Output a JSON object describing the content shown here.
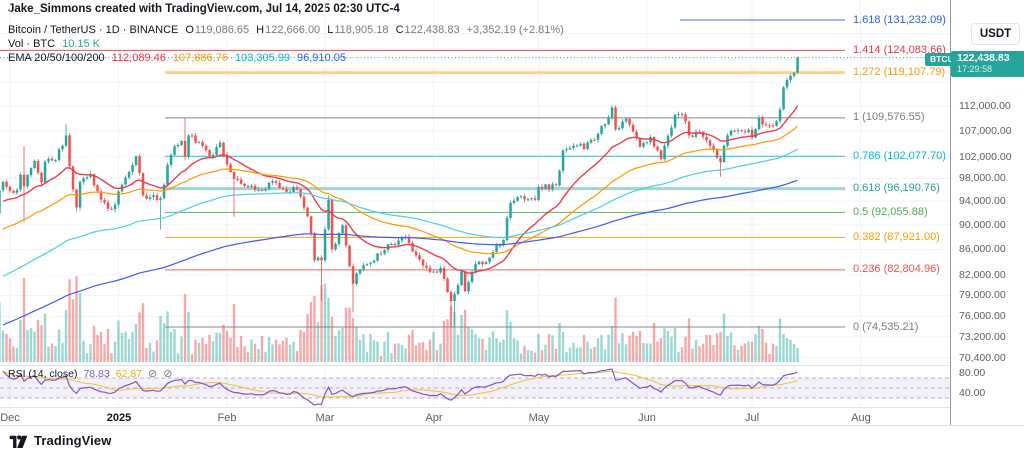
{
  "attribution": "Jake_Simmons created with TradingView.com, Jul 14, 2025 02:30 UTC-4",
  "symbol_row": {
    "title": "Bitcoin / TetherUS · 1D · BINANCE",
    "ohlc": [
      {
        "label": "O",
        "value": "119,086.65"
      },
      {
        "label": "H",
        "value": "122,666.00"
      },
      {
        "label": "L",
        "value": "118,905.18"
      },
      {
        "label": "C",
        "value": "122,438.83"
      }
    ],
    "change": "+3,352.19 (+2.81%)"
  },
  "volume_row": {
    "label": "Vol · BTC",
    "value": "10.15 K",
    "value_color": "#26a69a"
  },
  "ema_row": {
    "label": "EMA 20/50/100/200",
    "values": [
      {
        "text": "112,089.46",
        "color": "#f23645"
      },
      {
        "text": "107,886.76",
        "color": "#ff9800"
      },
      {
        "text": "103,305.99",
        "color": "#00bcd4"
      },
      {
        "text": "96,910.05",
        "color": "#2962ff"
      }
    ]
  },
  "rsi_row": {
    "label": "RSI (14, close)",
    "value1": "78.83",
    "value1_color": "#7e57c2",
    "value2": "62.87",
    "value2_color": "#e8b208"
  },
  "price_scale": {
    "currency": "USDT",
    "last_price_label": "122,438.83",
    "countdown": "17:29:58",
    "symbol_tag": "BTCUSDT",
    "ticks": [
      {
        "value": 112000,
        "label": "112,000.00"
      },
      {
        "value": 107000,
        "label": "107,000.00"
      },
      {
        "value": 102000,
        "label": "102,000.00"
      },
      {
        "value": 98000,
        "label": "98,000.00"
      },
      {
        "value": 94000,
        "label": "94,000.00"
      },
      {
        "value": 90000,
        "label": "90,000.00"
      },
      {
        "value": 86000,
        "label": "86,000.00"
      },
      {
        "value": 82000,
        "label": "82,000.00"
      },
      {
        "value": 79000,
        "label": "79,000.00"
      },
      {
        "value": 76000,
        "label": "76,000.00"
      },
      {
        "value": 73200,
        "label": "73,200.00"
      },
      {
        "value": 70400,
        "label": "70,400.00"
      }
    ],
    "rsi_ticks": [
      {
        "rsi": 80,
        "label": "80.00"
      },
      {
        "rsi": 40,
        "label": "40.00"
      }
    ]
  },
  "footer": {
    "brand": "TradingView"
  },
  "chart_data": {
    "type": "candlestick",
    "symbol": "BTCUSDT",
    "exchange": "BINANCE",
    "timeframe": "1D",
    "price_scale_type": "log",
    "last_price": 122438.83,
    "visible_price_range": [
      70400,
      131232.09
    ],
    "grid_prices": [
      128000,
      117000
    ],
    "months": [
      {
        "label": "Dec",
        "day": 0
      },
      {
        "label": "2025",
        "day": 31,
        "bold": true
      },
      {
        "label": "Feb",
        "day": 62
      },
      {
        "label": "Mar",
        "day": 90
      },
      {
        "label": "Apr",
        "day": 121
      },
      {
        "label": "May",
        "day": 151
      },
      {
        "label": "Jun",
        "day": 182
      },
      {
        "label": "Jul",
        "day": 212
      },
      {
        "label": "Aug",
        "day": 243
      }
    ],
    "fib_levels": [
      {
        "ratio": "1.618",
        "price": 131232.09,
        "label": "1.618 (131,232.09)",
        "color": "#2962ff",
        "emphasis": false
      },
      {
        "ratio": "1.414",
        "price": 124083.66,
        "label": "1.414 (124,083.66)",
        "color": "#f23645",
        "emphasis": false
      },
      {
        "ratio": "1.272",
        "price": 119107.79,
        "label": "1.272 (119,107.79)",
        "color": "#ff9800",
        "emphasis": true
      },
      {
        "ratio": "1",
        "price": 109576.55,
        "label": "1 (109,576.55)",
        "color": "#787b86",
        "emphasis": false
      },
      {
        "ratio": "0.786",
        "price": 102077.7,
        "label": "0.786 (102,077.70)",
        "color": "#00bcd4",
        "emphasis": false
      },
      {
        "ratio": "0.618",
        "price": 96190.76,
        "label": "0.618 (96,190.76)",
        "color": "#26a69a",
        "emphasis": true
      },
      {
        "ratio": "0.5",
        "price": 92055.88,
        "label": "0.5 (92,055.88)",
        "color": "#4caf50",
        "emphasis": false
      },
      {
        "ratio": "0.382",
        "price": 87921.0,
        "label": "0.382 (87,921.00)",
        "color": "#ff9800",
        "emphasis": false
      },
      {
        "ratio": "0.236",
        "price": 82804.96,
        "label": "0.236 (82,804.96)",
        "color": "#ef5350",
        "emphasis": false
      },
      {
        "ratio": "0",
        "price": 74535.21,
        "label": "0 (74,535.21)",
        "color": "#787b86",
        "emphasis": false
      }
    ],
    "ema_periods": [
      20,
      50,
      100,
      200
    ],
    "ema_current": [
      112089.46,
      107886.76,
      103305.99,
      96910.05
    ],
    "ema_seeds": [
      93500,
      88500,
      81000,
      74200
    ],
    "rsi_current": 78.83,
    "rsi_ma_current": 62.87,
    "volume_current_label": "10.15 K",
    "close_anchors": [
      [
        -4,
        91900
      ],
      [
        -3,
        95900
      ],
      [
        -2,
        97400
      ],
      [
        -1,
        96500
      ],
      [
        0,
        95800
      ],
      [
        2,
        96000
      ],
      [
        3,
        98700
      ],
      [
        4,
        96600
      ],
      [
        6,
        99900
      ],
      [
        7,
        101200
      ],
      [
        9,
        97300
      ],
      [
        10,
        101100
      ],
      [
        13,
        101400
      ],
      [
        15,
        104100
      ],
      [
        16,
        106100
      ],
      [
        17,
        100200
      ],
      [
        19,
        92900
      ],
      [
        20,
        97400
      ],
      [
        23,
        98800
      ],
      [
        26,
        94200
      ],
      [
        29,
        92600
      ],
      [
        30,
        93400
      ],
      [
        32,
        96900
      ],
      [
        36,
        102100
      ],
      [
        38,
        95000
      ],
      [
        40,
        94700
      ],
      [
        43,
        94500
      ],
      [
        45,
        100500
      ],
      [
        47,
        104000
      ],
      [
        49,
        105000
      ],
      [
        50,
        102000
      ],
      [
        51,
        106100
      ],
      [
        54,
        104800
      ],
      [
        57,
        102100
      ],
      [
        60,
        104700
      ],
      [
        61,
        102400
      ],
      [
        62,
        100600
      ],
      [
        64,
        97900
      ],
      [
        65,
        97800
      ],
      [
        68,
        96500
      ],
      [
        72,
        95800
      ],
      [
        75,
        97500
      ],
      [
        79,
        95600
      ],
      [
        82,
        96100
      ],
      [
        85,
        91400
      ],
      [
        86,
        88600
      ],
      [
        87,
        84300
      ],
      [
        88,
        84700
      ],
      [
        89,
        84300
      ],
      [
        91,
        94200
      ],
      [
        92,
        86000
      ],
      [
        95,
        89900
      ],
      [
        98,
        80700
      ],
      [
        100,
        82900
      ],
      [
        103,
        83900
      ],
      [
        108,
        86800
      ],
      [
        113,
        88000
      ],
      [
        117,
        84400
      ],
      [
        120,
        82500
      ],
      [
        123,
        83100
      ],
      [
        126,
        78200
      ],
      [
        127,
        79200
      ],
      [
        129,
        82600
      ],
      [
        130,
        79600
      ],
      [
        133,
        83700
      ],
      [
        136,
        84000
      ],
      [
        141,
        87500
      ],
      [
        143,
        93700
      ],
      [
        145,
        94700
      ],
      [
        150,
        94200
      ],
      [
        151,
        96500
      ],
      [
        156,
        96800
      ],
      [
        158,
        103200
      ],
      [
        162,
        104100
      ],
      [
        164,
        103500
      ],
      [
        168,
        106400
      ],
      [
        171,
        109700
      ],
      [
        172,
        111700
      ],
      [
        173,
        107300
      ],
      [
        176,
        109400
      ],
      [
        180,
        103900
      ],
      [
        181,
        104600
      ],
      [
        183,
        105800
      ],
      [
        186,
        101600
      ],
      [
        190,
        110200
      ],
      [
        192,
        110300
      ],
      [
        194,
        106100
      ],
      [
        197,
        106800
      ],
      [
        201,
        103300
      ],
      [
        203,
        101000
      ],
      [
        205,
        106100
      ],
      [
        208,
        107100
      ],
      [
        211,
        107200
      ],
      [
        212,
        105700
      ],
      [
        214,
        109600
      ],
      [
        216,
        108100
      ],
      [
        218,
        108000
      ],
      [
        219,
        108900
      ],
      [
        220,
        111300
      ],
      [
        221,
        115900
      ],
      [
        222,
        117500
      ],
      [
        224,
        119100
      ],
      [
        225,
        122438.83
      ]
    ],
    "wick_events": [
      {
        "day": 4,
        "high": 104000,
        "low": 90500
      },
      {
        "day": 16,
        "high": 108300
      },
      {
        "day": 19,
        "low": 92200
      },
      {
        "day": 43,
        "low": 89200
      },
      {
        "day": 50,
        "high": 109576.55
      },
      {
        "day": 64,
        "low": 91300
      },
      {
        "day": 89,
        "low": 78200
      },
      {
        "day": 91,
        "high": 95000
      },
      {
        "day": 98,
        "low": 76600
      },
      {
        "day": 126,
        "low": 74535.21
      },
      {
        "day": 127,
        "low": 74600
      },
      {
        "day": 172,
        "high": 112000
      },
      {
        "day": 203,
        "low": 98300
      },
      {
        "day": 221,
        "high": 116000
      },
      {
        "day": 225,
        "high": 122666,
        "low": 118905.18
      }
    ],
    "volume_spikes": [
      {
        "day": 4,
        "v": 84
      },
      {
        "day": 16,
        "v": 52
      },
      {
        "day": 19,
        "v": 86
      },
      {
        "day": 26,
        "v": 30
      },
      {
        "day": 36,
        "v": 38
      },
      {
        "day": 43,
        "v": 46
      },
      {
        "day": 50,
        "v": 68
      },
      {
        "day": 51,
        "v": 50
      },
      {
        "day": 64,
        "v": 58
      },
      {
        "day": 72,
        "v": 26
      },
      {
        "day": 85,
        "v": 48
      },
      {
        "day": 86,
        "v": 60
      },
      {
        "day": 87,
        "v": 66
      },
      {
        "day": 88,
        "v": 40
      },
      {
        "day": 89,
        "v": 77
      },
      {
        "day": 91,
        "v": 64
      },
      {
        "day": 92,
        "v": 45
      },
      {
        "day": 98,
        "v": 44
      },
      {
        "day": 103,
        "v": 28
      },
      {
        "day": 121,
        "v": 30
      },
      {
        "day": 126,
        "v": 56
      },
      {
        "day": 127,
        "v": 50
      },
      {
        "day": 129,
        "v": 47
      },
      {
        "day": 133,
        "v": 28
      },
      {
        "day": 143,
        "v": 40
      },
      {
        "day": 151,
        "v": 28
      },
      {
        "day": 158,
        "v": 30
      },
      {
        "day": 168,
        "v": 24
      },
      {
        "day": 172,
        "v": 36
      },
      {
        "day": 179,
        "v": 26
      },
      {
        "day": 186,
        "v": 24
      },
      {
        "day": 190,
        "v": 34
      },
      {
        "day": 196,
        "v": 22
      },
      {
        "day": 203,
        "v": 30
      },
      {
        "day": 205,
        "v": 26
      },
      {
        "day": 212,
        "v": 20
      },
      {
        "day": 221,
        "v": 28
      },
      {
        "day": 222,
        "v": 24
      },
      {
        "day": 224,
        "v": 18
      },
      {
        "day": 225,
        "v": 14
      }
    ],
    "colors": {
      "up": "#26a69a",
      "down": "#ef5350",
      "vol_up": "rgba(38,166,154,0.45)",
      "vol_down": "rgba(239,83,80,0.5)",
      "ema_lines": [
        "#ef3b4a",
        "#ff9800",
        "#4dd0e1",
        "#3d5afe"
      ],
      "rsi": "#7e57c2",
      "rsi_ma": "#f2c230",
      "rsi_band_fill": "rgba(126,87,194,0.09)",
      "grid": "#f0f3fa",
      "dashed": "#a6a9b3",
      "last_price_line": "#26a69a",
      "badge": "#26a69a"
    }
  }
}
